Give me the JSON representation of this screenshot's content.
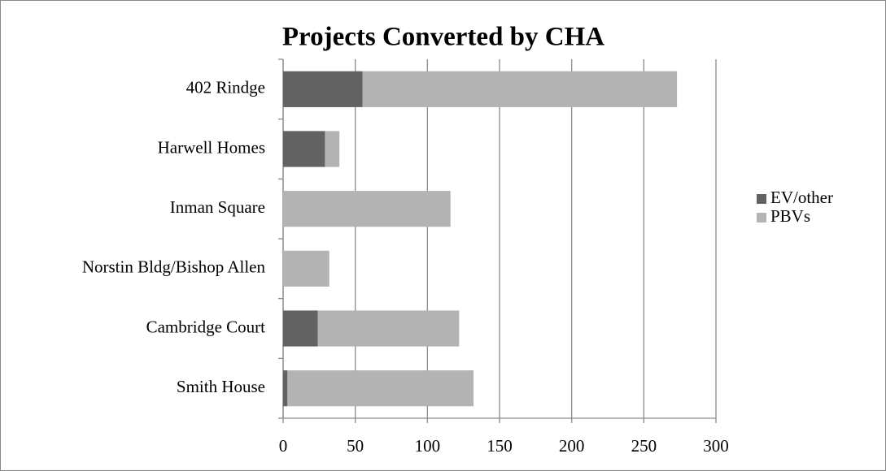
{
  "chart_data": {
    "type": "hbar_stacked",
    "title": "Projects Converted by CHA",
    "categories": [
      "402 Rindge",
      "Harwell Homes",
      "Inman Square",
      "Norstin Bldg/Bishop Allen",
      "Cambridge Court",
      "Smith House"
    ],
    "series": [
      {
        "name": "EV/other",
        "color": "#626262",
        "values": [
          55,
          29,
          0,
          0,
          24,
          3
        ]
      },
      {
        "name": "PBVs",
        "color": "#b3b3b3",
        "values": [
          218,
          10,
          116,
          32,
          98,
          129
        ]
      }
    ],
    "xlim": [
      0,
      300
    ],
    "xticks": [
      0,
      50,
      100,
      150,
      200,
      250,
      300
    ],
    "grid": true,
    "legend": "right"
  }
}
